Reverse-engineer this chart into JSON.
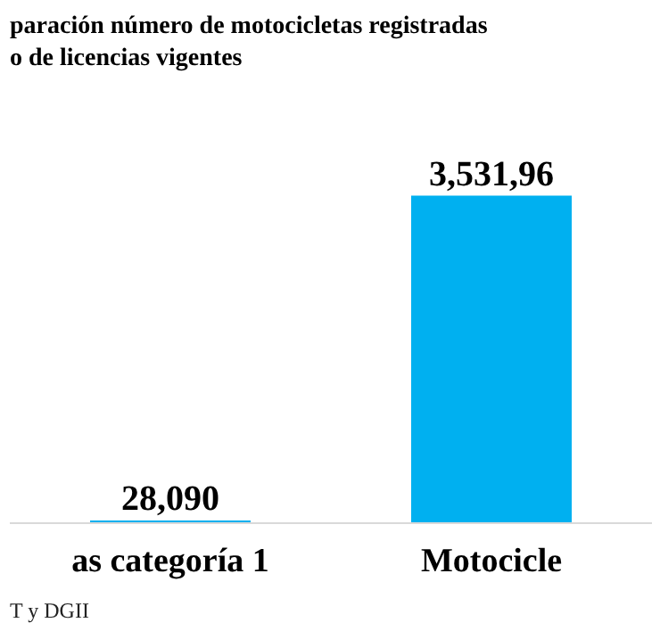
{
  "chart_data": {
    "type": "bar",
    "title": "paración número de motocicletas registradas\no de licencias vigentes",
    "categories": [
      "as categoría 1",
      "Motocicle"
    ],
    "values": [
      28090,
      3531960
    ],
    "value_labels": [
      "28,090",
      "3,531,96"
    ],
    "color": "#00b0f0",
    "grid": false,
    "annotations": [
      "T y DGII"
    ]
  }
}
